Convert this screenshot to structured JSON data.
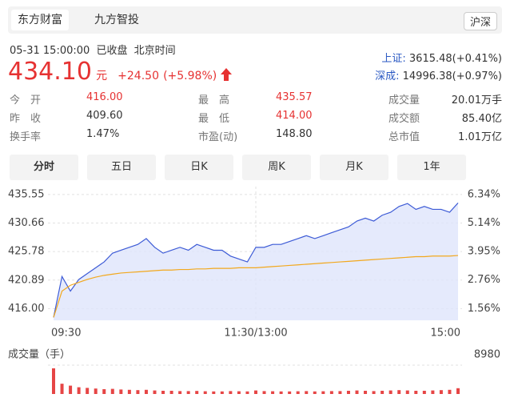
{
  "tabs": [
    "东方财富",
    "九方智投"
  ],
  "market_button": "沪深",
  "header": {
    "datetime": "05-31 15:00:00",
    "status": "已收盘",
    "timezone": "北京时间"
  },
  "quote": {
    "price": "434.10",
    "unit": "元",
    "change": "+24.50",
    "change_pct": "(+5.98%)"
  },
  "indices": [
    {
      "name": "上证:",
      "value": "3615.48(+0.41%)"
    },
    {
      "name": "深成:",
      "value": "14996.38(+0.97%)"
    }
  ],
  "stats": [
    [
      [
        "今开",
        "416.00"
      ],
      [
        "最高",
        "435.57"
      ],
      [
        "成交量",
        "20.01万手"
      ]
    ],
    [
      [
        "昨收",
        "409.60"
      ],
      [
        "最低",
        "414.00"
      ],
      [
        "成交额",
        "85.40亿"
      ]
    ],
    [
      [
        "换手率",
        "1.47%"
      ],
      [
        "市盈(动)",
        "148.80"
      ],
      [
        "总市值",
        "1.01万亿"
      ]
    ]
  ],
  "periods": [
    "分时",
    "五日",
    "日K",
    "周K",
    "月K",
    "1年"
  ],
  "chart_data": [
    {
      "type": "line",
      "categories": [
        "09:30",
        null,
        null,
        null,
        null,
        null,
        null,
        null,
        null,
        null,
        null,
        null,
        null,
        null,
        null,
        null,
        null,
        null,
        null,
        null,
        null,
        null,
        null,
        null,
        "11:30/13:00",
        null,
        null,
        null,
        null,
        null,
        null,
        null,
        null,
        null,
        null,
        null,
        null,
        null,
        null,
        null,
        null,
        null,
        null,
        null,
        null,
        null,
        null,
        null,
        "15:00"
      ],
      "series": [
        {
          "color": "#3d5bd6",
          "values": [
            414.5,
            421.5,
            419.0,
            421.0,
            422.0,
            423.0,
            424.0,
            425.5,
            426.0,
            426.5,
            427.0,
            428.0,
            426.5,
            425.5,
            426.0,
            426.5,
            426.0,
            427.0,
            426.5,
            426.0,
            426.0,
            425.0,
            424.5,
            424.0,
            426.5,
            426.5,
            427.0,
            427.0,
            427.5,
            428.0,
            428.5,
            428.0,
            428.5,
            429.0,
            429.5,
            430.0,
            431.0,
            431.5,
            431.0,
            432.0,
            432.5,
            433.5,
            434.0,
            433.0,
            433.5,
            433.0,
            433.0,
            432.5,
            434.1
          ]
        },
        {
          "color": "#f2a81d",
          "values": [
            414.5,
            419.0,
            420.0,
            420.5,
            421.0,
            421.4,
            421.7,
            421.9,
            422.1,
            422.2,
            422.3,
            422.4,
            422.5,
            422.6,
            422.6,
            422.7,
            422.7,
            422.8,
            422.8,
            422.9,
            422.9,
            422.9,
            423.0,
            423.0,
            423.0,
            423.1,
            423.2,
            423.3,
            423.4,
            423.5,
            423.6,
            423.7,
            423.8,
            423.9,
            424.0,
            424.1,
            424.2,
            424.3,
            424.4,
            424.5,
            424.6,
            424.7,
            424.8,
            424.9,
            424.9,
            425.0,
            425.0,
            425.0,
            425.1
          ]
        }
      ],
      "area_fill": "#dfe5fb",
      "ylim": [
        414.0,
        436.9
      ],
      "yticks": [
        {
          "value": 416,
          "label": "416.00"
        },
        420.89,
        425.78,
        430.66,
        435.55
      ],
      "y2lim": [
        1.07,
        6.67
      ],
      "y2ticks": [
        {
          "value": 1.56,
          "label": "1.56%"
        },
        {
          "value": 2.76,
          "label": "2.76%"
        },
        {
          "value": 3.95,
          "label": "3.95%"
        },
        {
          "value": 5.14,
          "label": "5.14%"
        },
        {
          "value": 6.34,
          "label": "6.34%"
        }
      ],
      "grid": true
    },
    {
      "type": "bar",
      "title": "成交量（手）",
      "color": "#e64545",
      "values": [
        8000,
        3200,
        2600,
        2100,
        1900,
        1700,
        1500,
        1600,
        1400,
        1300,
        1200,
        1300,
        1100,
        1000,
        1000,
        900,
        900,
        950,
        850,
        800,
        800,
        900,
        850,
        800,
        1100,
        900,
        850,
        800,
        800,
        850,
        900,
        800,
        850,
        900,
        900,
        1000,
        1100,
        1000,
        900,
        1000,
        1100,
        1200,
        1100,
        1000,
        1000,
        1100,
        1200,
        1300,
        1800
      ],
      "ylim": [
        0,
        8980
      ],
      "yticks": [
        8980
      ]
    }
  ]
}
